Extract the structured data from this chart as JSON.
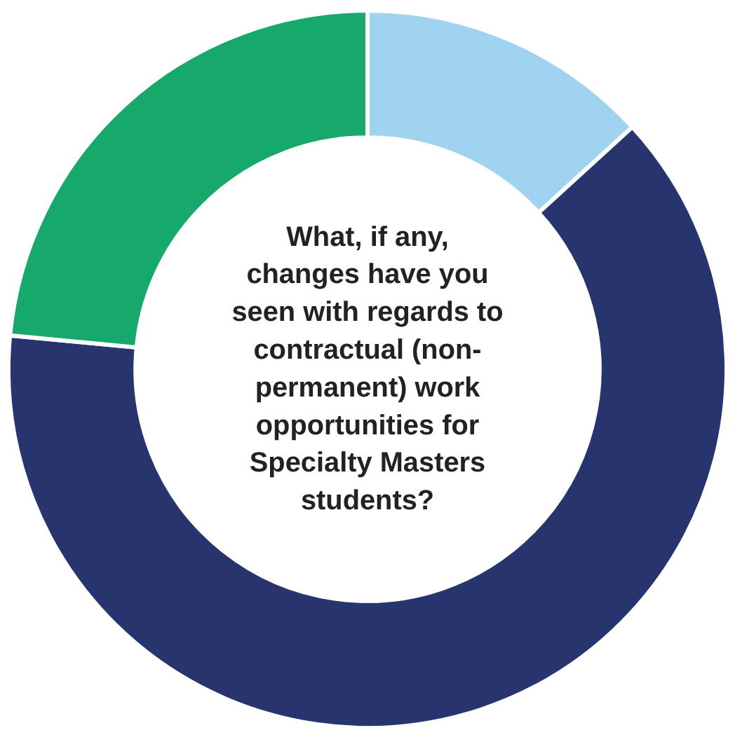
{
  "chart_data": {
    "type": "donut",
    "title": "What, if any, changes have you seen with regards to contractual (non-permanent) work opportunities for Specialty Masters students?",
    "categories": [
      null,
      null,
      null
    ],
    "values": [
      13.2,
      63.3,
      23.5
    ],
    "colors": [
      "#9fd3f0",
      "#27346e",
      "#17a86b"
    ],
    "legend": false
  }
}
